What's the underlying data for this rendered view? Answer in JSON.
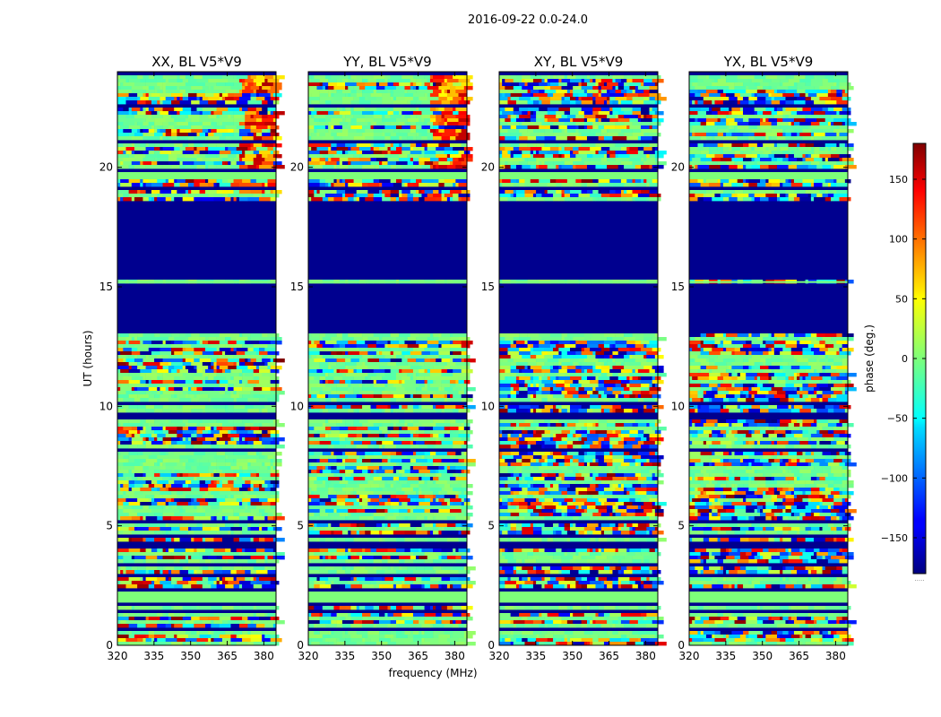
{
  "chart_data": {
    "type": "heatmap",
    "suptitle": "2016-09-22 0.0-24.0",
    "xlabel": "frequency (MHz)",
    "ylabel": "UT (hours)",
    "xlim": [
      320,
      385
    ],
    "ylim": [
      0,
      24
    ],
    "xticks": [
      320,
      335,
      350,
      365,
      380
    ],
    "yticks": [
      0,
      5,
      10,
      15,
      20
    ],
    "panels": [
      {
        "title": "XX, BL V5*V9",
        "pol": "XX"
      },
      {
        "title": "YY, BL V5*V9",
        "pol": "YY"
      },
      {
        "title": "XY, BL V5*V9",
        "pol": "XY"
      },
      {
        "title": "YX, BL V5*V9",
        "pol": "YX"
      }
    ],
    "colorbar": {
      "label": "phase (deg.)",
      "range": [
        -180,
        180
      ],
      "ticks": [
        150,
        100,
        50,
        0,
        -50,
        -100,
        -150
      ],
      "tick_labels": [
        "150",
        "100",
        "50",
        "0",
        "−50",
        "−100",
        "−150"
      ],
      "colormap": "jet",
      "extra_label": "....."
    },
    "regions_ut": {
      "flagged_solid": [
        [
          13.0,
          15.1
        ],
        [
          15.3,
          18.6
        ]
      ],
      "flat_bands": [
        [
          1.7,
          2.3
        ],
        [
          19.5,
          19.9
        ]
      ]
    }
  }
}
